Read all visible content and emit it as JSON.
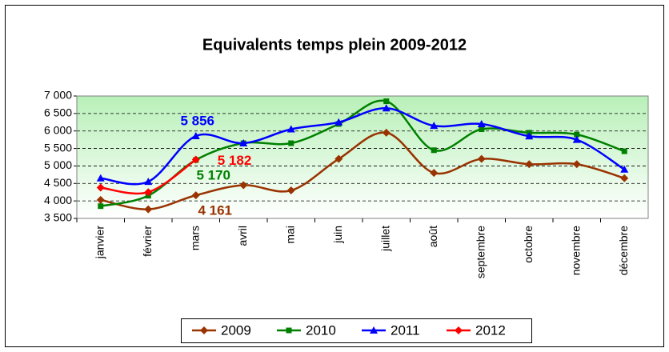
{
  "chart_data": {
    "type": "line",
    "title": "Equivalents temps plein 2009-2012",
    "categories": [
      "janvier",
      "février",
      "mars",
      "avril",
      "mai",
      "juin",
      "juillet",
      "août",
      "septembre",
      "octobre",
      "novembre",
      "décembre"
    ],
    "series": [
      {
        "name": "2009",
        "color": "#993300",
        "marker": "diamond",
        "values": [
          4030,
          3760,
          4161,
          4450,
          4300,
          5200,
          5950,
          4800,
          5200,
          5050,
          5050,
          4650
        ],
        "value_labels": [
          null,
          null,
          "4 161",
          null,
          null,
          null,
          null,
          null,
          null,
          null,
          null,
          null
        ]
      },
      {
        "name": "2010",
        "color": "#008000",
        "marker": "square",
        "values": [
          3850,
          4150,
          5170,
          5650,
          5650,
          6200,
          6850,
          5450,
          6050,
          5950,
          5900,
          5420
        ],
        "value_labels": [
          null,
          null,
          "5 170",
          null,
          null,
          null,
          null,
          null,
          null,
          null,
          null,
          null
        ]
      },
      {
        "name": "2011",
        "color": "#0000ff",
        "marker": "triangle",
        "values": [
          4650,
          4550,
          5856,
          5650,
          6050,
          6250,
          6650,
          6150,
          6200,
          5850,
          5750,
          4900
        ],
        "value_labels": [
          null,
          null,
          "5 856",
          null,
          null,
          null,
          null,
          null,
          null,
          null,
          null,
          null
        ]
      },
      {
        "name": "2012",
        "color": "#ff0000",
        "marker": "diamond",
        "values": [
          4380,
          4250,
          5182,
          null,
          null,
          null,
          null,
          null,
          null,
          null,
          null,
          null
        ],
        "value_labels": [
          null,
          null,
          "5 182",
          null,
          null,
          null,
          null,
          null,
          null,
          null,
          null,
          null
        ]
      }
    ],
    "ylim": [
      3500,
      7000
    ],
    "yticks": [
      {
        "value": 3500,
        "label": "3 500"
      },
      {
        "value": 4000,
        "label": "4 000"
      },
      {
        "value": 4500,
        "label": "4 500"
      },
      {
        "value": 5000,
        "label": "5 000"
      },
      {
        "value": 5500,
        "label": "5 500"
      },
      {
        "value": 6000,
        "label": "6 000"
      },
      {
        "value": 6500,
        "label": "6 500"
      },
      {
        "value": 7000,
        "label": "7 000"
      }
    ],
    "grid": true,
    "legend": "bottom"
  }
}
